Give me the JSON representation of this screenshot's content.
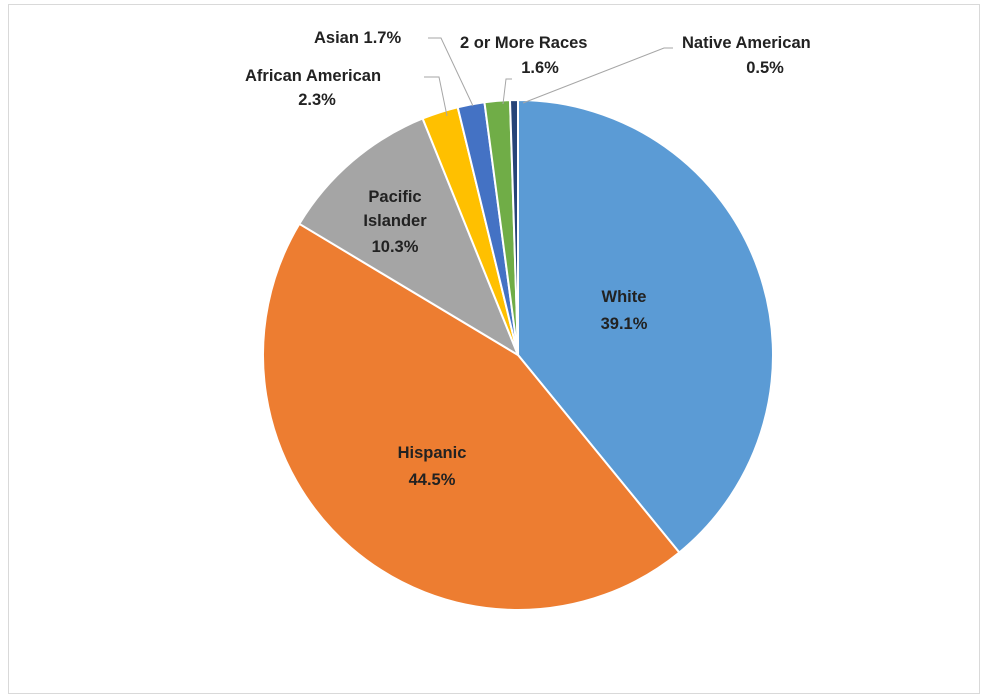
{
  "chart_data": {
    "type": "pie",
    "title": "",
    "start_angle_deg": 0,
    "direction": "clockwise",
    "slices": [
      {
        "category": "White",
        "value": 39.1,
        "pct_label": "39.1%",
        "color": "#5b9bd5",
        "label_placement": "inside"
      },
      {
        "category": "Hispanic",
        "value": 44.5,
        "pct_label": "44.5%",
        "color": "#ed7d31",
        "label_placement": "inside"
      },
      {
        "category": "Pacific Islander",
        "value": 10.3,
        "pct_label": "10.3%",
        "color": "#a5a5a5",
        "label_placement": "inside"
      },
      {
        "category": "African American",
        "value": 2.3,
        "pct_label": "2.3%",
        "color": "#ffc000",
        "label_placement": "outside"
      },
      {
        "category": "Asian",
        "value": 1.7,
        "pct_label": "1.7%",
        "color": "#4472c4",
        "label_placement": "outside"
      },
      {
        "category": "2 or More Races",
        "value": 1.6,
        "pct_label": "1.6%",
        "color": "#70ad47",
        "label_placement": "outside"
      },
      {
        "category": "Native American",
        "value": 0.5,
        "pct_label": "0.5%",
        "color": "#264478",
        "label_placement": "outside"
      }
    ],
    "label_lines": [
      "Pacific",
      "Islander"
    ],
    "slice_border_color": "#ffffff",
    "leader_line_color": "#a6a6a6"
  }
}
